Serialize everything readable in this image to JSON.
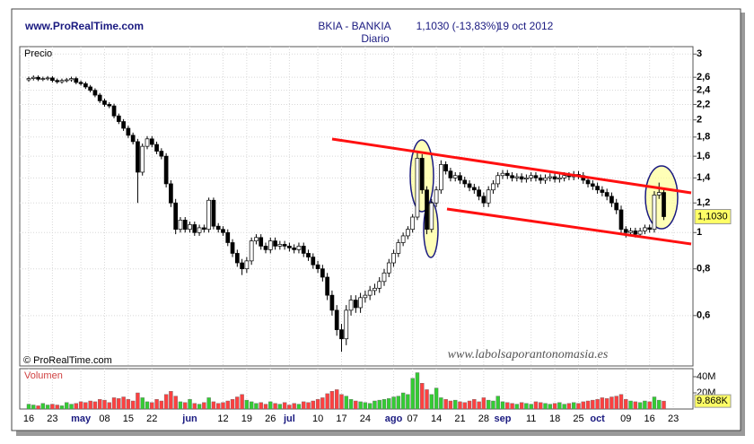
{
  "chart_data": {
    "type": "candlestick",
    "source": "www.ProRealTime.com",
    "title": "BKIA - BANKIA",
    "quote": "1,1030 (-13,83%)",
    "date": "19 oct 2012",
    "subtitle": "Diario",
    "price_label": "Precio",
    "copyright": "© ProRealTime.com",
    "watermark": "www.labolsaporantonomasia.es",
    "volume_label": "Volumen",
    "last_close_label": "1,1030",
    "last_volume_label": "9.868K",
    "log_scale": true,
    "grid": true,
    "up_color": "#ffffff",
    "down_color": "#000000",
    "volume_up_color": "#33cc33",
    "volume_down_color": "#ff4040",
    "ylim": [
      0.44,
      3.14
    ],
    "yticks": [
      {
        "value": 0.6,
        "label": "0,6"
      },
      {
        "value": 0.8,
        "label": "0,8"
      },
      1,
      {
        "value": 1.2,
        "label": "1,2"
      },
      {
        "value": 1.4,
        "label": "1,4"
      },
      {
        "value": 1.6,
        "label": "1,6"
      },
      {
        "value": 1.8,
        "label": "1,8"
      },
      2,
      {
        "value": 2.2,
        "label": "2,2"
      },
      {
        "value": 2.4,
        "label": "2,4"
      },
      {
        "value": 2.6,
        "label": "2,6"
      },
      3
    ],
    "volume_ylim": [
      0,
      50
    ],
    "volume_yticks": [
      {
        "value": 20,
        "label": "20M"
      },
      {
        "value": 40,
        "label": "40M"
      }
    ],
    "categories": [
      "16",
      null,
      null,
      null,
      null,
      "23",
      null,
      null,
      null,
      null,
      null,
      "may",
      null,
      null,
      null,
      null,
      "08",
      null,
      null,
      null,
      null,
      "15",
      null,
      null,
      null,
      null,
      "22",
      null,
      null,
      null,
      null,
      null,
      null,
      null,
      "jun",
      null,
      null,
      null,
      null,
      null,
      null,
      "12",
      null,
      null,
      null,
      null,
      "19",
      null,
      null,
      null,
      null,
      "26",
      null,
      null,
      null,
      "jul",
      null,
      null,
      null,
      null,
      null,
      "10",
      null,
      null,
      null,
      null,
      "17",
      null,
      null,
      null,
      null,
      "24",
      null,
      null,
      null,
      null,
      null,
      "ago",
      null,
      null,
      null,
      "07",
      null,
      null,
      null,
      null,
      "14",
      null,
      null,
      null,
      null,
      "21",
      null,
      null,
      null,
      null,
      "28",
      null,
      null,
      null,
      "sep",
      null,
      null,
      null,
      null,
      null,
      "11",
      null,
      null,
      null,
      null,
      "18",
      null,
      null,
      null,
      null,
      "25",
      null,
      null,
      null,
      "oct",
      null,
      null,
      null,
      null,
      null,
      "09",
      null,
      null,
      null,
      null,
      "16",
      null,
      null,
      null,
      null,
      "23"
    ],
    "open": [
      2.56,
      2.58,
      2.6,
      2.57,
      2.58,
      2.59,
      2.55,
      2.53,
      2.55,
      2.56,
      2.58,
      2.52,
      2.5,
      2.45,
      2.4,
      2.33,
      2.25,
      2.2,
      2.18,
      2.05,
      1.98,
      1.9,
      1.82,
      1.75,
      1.45,
      1.7,
      1.78,
      1.72,
      1.65,
      1.6,
      1.35,
      1.2,
      1.02,
      1.08,
      1.02,
      1.05,
      1.0,
      1.03,
      1.02,
      1.22,
      1.04,
      1.02,
      1.0,
      0.94,
      0.88,
      0.83,
      0.8,
      0.84,
      0.95,
      0.97,
      0.92,
      0.9,
      0.95,
      0.92,
      0.93,
      0.92,
      0.91,
      0.9,
      0.92,
      0.88,
      0.86,
      0.82,
      0.8,
      0.76,
      0.68,
      0.62,
      0.55,
      0.52,
      0.62,
      0.66,
      0.63,
      0.67,
      0.68,
      0.7,
      0.71,
      0.74,
      0.78,
      0.83,
      0.88,
      0.94,
      0.98,
      1.02,
      1.1,
      1.58,
      1.3,
      1.02,
      1.2,
      1.3,
      1.52,
      1.46,
      1.4,
      1.42,
      1.38,
      1.35,
      1.32,
      1.3,
      1.25,
      1.2,
      1.3,
      1.35,
      1.42,
      1.44,
      1.42,
      1.4,
      1.41,
      1.39,
      1.4,
      1.42,
      1.4,
      1.38,
      1.4,
      1.41,
      1.39,
      1.4,
      1.42,
      1.41,
      1.43,
      1.42,
      1.38,
      1.35,
      1.33,
      1.3,
      1.28,
      1.25,
      1.2,
      1.15,
      1.02,
      1.0,
      1.01,
      0.99,
      1.01,
      1.03,
      1.02,
      1.26,
      1.28,
      null,
      null
    ],
    "high": [
      2.61,
      2.63,
      2.63,
      2.61,
      2.62,
      2.62,
      2.58,
      2.58,
      2.59,
      2.61,
      2.61,
      2.55,
      2.53,
      2.48,
      2.43,
      2.36,
      2.28,
      2.23,
      2.21,
      2.08,
      2.01,
      1.93,
      1.85,
      1.78,
      1.73,
      1.81,
      1.81,
      1.75,
      1.68,
      1.63,
      1.38,
      1.23,
      1.1,
      1.1,
      1.07,
      1.07,
      1.05,
      1.05,
      1.24,
      1.24,
      1.06,
      1.04,
      1.02,
      0.96,
      0.9,
      0.85,
      0.86,
      0.97,
      0.99,
      0.99,
      0.94,
      0.97,
      0.97,
      0.95,
      0.95,
      0.94,
      0.93,
      0.94,
      0.94,
      0.9,
      0.88,
      0.84,
      0.82,
      0.78,
      0.7,
      0.64,
      0.57,
      0.64,
      0.68,
      0.68,
      0.69,
      0.7,
      0.72,
      0.73,
      0.76,
      0.8,
      0.85,
      0.9,
      0.96,
      1.0,
      1.04,
      1.12,
      1.64,
      1.62,
      1.33,
      1.23,
      1.33,
      1.56,
      1.55,
      1.49,
      1.45,
      1.45,
      1.41,
      1.38,
      1.35,
      1.33,
      1.28,
      1.33,
      1.38,
      1.45,
      1.47,
      1.47,
      1.45,
      1.44,
      1.44,
      1.43,
      1.45,
      1.45,
      1.43,
      1.43,
      1.44,
      1.44,
      1.43,
      1.45,
      1.45,
      1.46,
      1.46,
      1.45,
      1.41,
      1.38,
      1.36,
      1.33,
      1.31,
      1.28,
      1.23,
      1.18,
      1.04,
      1.03,
      1.03,
      1.03,
      1.05,
      1.05,
      1.29,
      1.36,
      1.31,
      null,
      null
    ],
    "low": [
      2.53,
      2.55,
      2.54,
      2.54,
      2.55,
      2.52,
      2.5,
      2.5,
      2.52,
      2.53,
      2.49,
      2.47,
      2.42,
      2.37,
      2.3,
      2.22,
      2.17,
      2.15,
      2.02,
      1.95,
      1.87,
      1.79,
      1.72,
      1.2,
      1.42,
      1.67,
      1.69,
      1.62,
      1.57,
      1.32,
      1.17,
      0.99,
      1.0,
      1.0,
      1.0,
      0.98,
      0.98,
      1.0,
      1.0,
      1.02,
      1.0,
      0.98,
      0.92,
      0.86,
      0.81,
      0.77,
      0.78,
      0.82,
      0.93,
      0.9,
      0.88,
      0.88,
      0.9,
      0.9,
      0.9,
      0.89,
      0.88,
      0.88,
      0.86,
      0.84,
      0.8,
      0.78,
      0.74,
      0.66,
      0.6,
      0.53,
      0.48,
      0.5,
      0.6,
      0.61,
      0.61,
      0.65,
      0.66,
      0.68,
      0.69,
      0.72,
      0.76,
      0.81,
      0.86,
      0.92,
      0.96,
      1.0,
      1.08,
      1.27,
      0.99,
      1.0,
      1.17,
      1.27,
      1.43,
      1.37,
      1.37,
      1.35,
      1.32,
      1.29,
      1.27,
      1.22,
      1.17,
      1.17,
      1.27,
      1.32,
      1.39,
      1.39,
      1.37,
      1.37,
      1.36,
      1.36,
      1.37,
      1.37,
      1.35,
      1.35,
      1.37,
      1.36,
      1.36,
      1.37,
      1.38,
      1.38,
      1.39,
      1.35,
      1.32,
      1.3,
      1.27,
      1.25,
      1.22,
      1.17,
      1.12,
      0.99,
      0.97,
      0.98,
      0.97,
      0.97,
      0.99,
      1.0,
      1.0,
      1.23,
      1.08,
      null,
      null
    ],
    "close": [
      2.58,
      2.6,
      2.57,
      2.58,
      2.59,
      2.55,
      2.53,
      2.55,
      2.56,
      2.58,
      2.52,
      2.5,
      2.45,
      2.4,
      2.33,
      2.25,
      2.2,
      2.18,
      2.05,
      1.98,
      1.9,
      1.82,
      1.75,
      1.45,
      1.7,
      1.78,
      1.72,
      1.65,
      1.6,
      1.35,
      1.2,
      1.02,
      1.08,
      1.02,
      1.05,
      1.0,
      1.03,
      1.02,
      1.22,
      1.04,
      1.02,
      1.0,
      0.94,
      0.88,
      0.83,
      0.8,
      0.84,
      0.95,
      0.97,
      0.92,
      0.9,
      0.95,
      0.92,
      0.93,
      0.92,
      0.91,
      0.9,
      0.92,
      0.88,
      0.86,
      0.82,
      0.8,
      0.76,
      0.68,
      0.62,
      0.55,
      0.52,
      0.62,
      0.66,
      0.63,
      0.67,
      0.68,
      0.7,
      0.71,
      0.74,
      0.78,
      0.83,
      0.88,
      0.94,
      0.98,
      1.02,
      1.1,
      1.58,
      1.3,
      1.02,
      1.2,
      1.3,
      1.52,
      1.46,
      1.4,
      1.42,
      1.38,
      1.35,
      1.32,
      1.3,
      1.25,
      1.2,
      1.3,
      1.35,
      1.42,
      1.44,
      1.42,
      1.4,
      1.41,
      1.39,
      1.4,
      1.42,
      1.4,
      1.38,
      1.4,
      1.41,
      1.39,
      1.4,
      1.42,
      1.41,
      1.43,
      1.42,
      1.38,
      1.35,
      1.33,
      1.3,
      1.28,
      1.25,
      1.2,
      1.15,
      1.02,
      1.0,
      1.01,
      0.99,
      1.01,
      1.03,
      1.02,
      1.26,
      1.28,
      1.103,
      null,
      null
    ],
    "volume": [
      6,
      5,
      4,
      7,
      5,
      6,
      5,
      4,
      8,
      6,
      7,
      9,
      8,
      10,
      9,
      12,
      11,
      8,
      14,
      13,
      15,
      12,
      10,
      20,
      14,
      9,
      8,
      12,
      10,
      18,
      22,
      16,
      9,
      8,
      12,
      7,
      6,
      8,
      14,
      9,
      7,
      8,
      10,
      12,
      15,
      18,
      11,
      9,
      7,
      8,
      6,
      9,
      7,
      6,
      8,
      5,
      7,
      6,
      9,
      8,
      10,
      12,
      14,
      19,
      22,
      24,
      18,
      16,
      12,
      10,
      9,
      8,
      7,
      10,
      11,
      12,
      13,
      15,
      16,
      20,
      18,
      38,
      45,
      32,
      24,
      18,
      26,
      14,
      12,
      10,
      11,
      9,
      8,
      10,
      12,
      9,
      14,
      11,
      10,
      16,
      9,
      8,
      7,
      6,
      8,
      7,
      6,
      9,
      8,
      7,
      6,
      7,
      8,
      6,
      7,
      8,
      7,
      9,
      10,
      11,
      12,
      14,
      13,
      15,
      16,
      18,
      12,
      10,
      9,
      8,
      10,
      9,
      15,
      11,
      9.868,
      null,
      null
    ]
  }
}
